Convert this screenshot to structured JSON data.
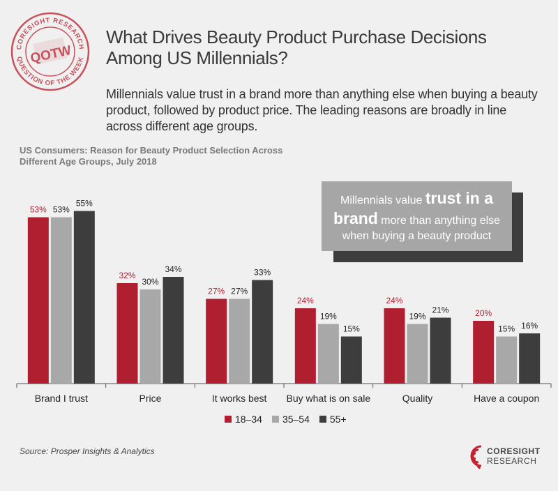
{
  "stamp": {
    "ring_top": "CORESIGHT RESEARCH",
    "ring_bottom": "QUESTION OF THE WEEK",
    "center": "QOTW",
    "color": "#c8505a"
  },
  "headline": "What Drives Beauty Product Purchase Decisions Among US Millennials?",
  "subhead": "Millennials value trust in a brand more than anything else when buying a beauty product, followed by product price. The leading reasons are broadly in line across different age groups.",
  "callout": {
    "part1": "Millennials value ",
    "emphasis": "trust in a brand",
    "part2": " more than anything else when buying a beauty product"
  },
  "chart_data": {
    "type": "bar",
    "title": "US Consumers: Reason for Beauty Product Selection Across Different Age Groups, July 2018",
    "categories": [
      "Brand I trust",
      "Price",
      "It works best",
      "Buy what is on sale",
      "Quality",
      "Have a coupon"
    ],
    "series": [
      {
        "name": "18–34",
        "values": [
          53,
          32,
          27,
          24,
          24,
          20
        ],
        "color": "#b01f30"
      },
      {
        "name": "35–54",
        "values": [
          53,
          30,
          27,
          19,
          19,
          15
        ],
        "color": "#a8a8a8"
      },
      {
        "name": "55+",
        "values": [
          55,
          34,
          33,
          15,
          21,
          16
        ],
        "color": "#3d3d3d"
      }
    ],
    "value_suffix": "%",
    "ylim": [
      0,
      60
    ],
    "grid": false,
    "legend": "bottom-center"
  },
  "source": "Source: Prosper Insights & Analytics",
  "logo": {
    "line1": "CORESIGHT",
    "line2": "RESEARCH",
    "color": "#c8202f"
  }
}
